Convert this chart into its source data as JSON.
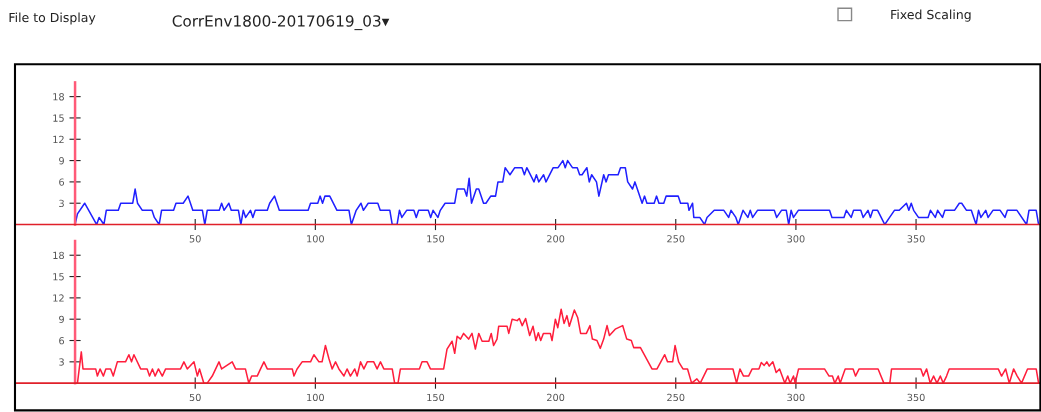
{
  "chart_data": [
    {
      "type": "line",
      "annotations": [
        "File to Display",
        "CorrEnv1800-20170619_03▾",
        "Fixed Scaling"
      ],
      "x": [
        0,
        1,
        4,
        9,
        10,
        12,
        13,
        18,
        19,
        24,
        25,
        26,
        28,
        32,
        33,
        35,
        36,
        41,
        42,
        45,
        47,
        49,
        53,
        54,
        55,
        60,
        61,
        62,
        64,
        65,
        68,
        69,
        70,
        71,
        73,
        74,
        75,
        80,
        81,
        83,
        85,
        97,
        98,
        101,
        102,
        103,
        104,
        106,
        109,
        114,
        115,
        117,
        119,
        120,
        122,
        126,
        127,
        131,
        132,
        134,
        135,
        136,
        138,
        141,
        142,
        143,
        147,
        148,
        149,
        151,
        152,
        154,
        158,
        159,
        162,
        163,
        164,
        165,
        167,
        168,
        170,
        171,
        173,
        175,
        176,
        178,
        179,
        181,
        183,
        186,
        187,
        188,
        191,
        192,
        193,
        195,
        196,
        199,
        201,
        203,
        204,
        205,
        207,
        209,
        210,
        211,
        213,
        214,
        215,
        217,
        218,
        220,
        221,
        222,
        226,
        227,
        229,
        230,
        232,
        233,
        234,
        236,
        237,
        238,
        241,
        242,
        243,
        245,
        246,
        251,
        252,
        255,
        255.5,
        257,
        257.5,
        260,
        262,
        263,
        266,
        270,
        272,
        273,
        275,
        276,
        278,
        280,
        281,
        282,
        284,
        291,
        292,
        294,
        296,
        297,
        298,
        299,
        301,
        314,
        315,
        320,
        321,
        323,
        324,
        327,
        328,
        330,
        331,
        332,
        334,
        337,
        339,
        341,
        343,
        346,
        347,
        348,
        349,
        351,
        355,
        356,
        358,
        359,
        361,
        362,
        366,
        368,
        369,
        371,
        373,
        374,
        375,
        376,
        377,
        379,
        380,
        382,
        385,
        387,
        388,
        392,
        396,
        397,
        400,
        401
      ],
      "series": [
        {
          "color": "#2020ff",
          "values": [
            0,
            1.5,
            3,
            0,
            1,
            0,
            2,
            2,
            3,
            3,
            5,
            3,
            2,
            2,
            1,
            0,
            2,
            2,
            3,
            3,
            4,
            2,
            2,
            0,
            2,
            2,
            3,
            2,
            3,
            2,
            2,
            0,
            2,
            1,
            2,
            1,
            2,
            2,
            3,
            4,
            2,
            2,
            3,
            3,
            4,
            3,
            4,
            4,
            2,
            2,
            0,
            2,
            3,
            2,
            3,
            3,
            2,
            2,
            0,
            0,
            2,
            1,
            2,
            2,
            1,
            2,
            2,
            1,
            2,
            1,
            2,
            3,
            3,
            5,
            5,
            4,
            6.5,
            3,
            5,
            5,
            3,
            3,
            4,
            4,
            6,
            6,
            8,
            7,
            8,
            8,
            7,
            8,
            6,
            7,
            6,
            7,
            6,
            8,
            8,
            9,
            8,
            9,
            8,
            8,
            7,
            7,
            8,
            6,
            7,
            6,
            4,
            7,
            6,
            7,
            7,
            8,
            8,
            6,
            5,
            6,
            5,
            3,
            4,
            3,
            3,
            4,
            3,
            3,
            4,
            4,
            3,
            3,
            2,
            3,
            1,
            1,
            0,
            1,
            2,
            2,
            1,
            2,
            1,
            0,
            2,
            1,
            2,
            1,
            2,
            2,
            1,
            2,
            2,
            0,
            2,
            1,
            2,
            2,
            1,
            1,
            2,
            1,
            2,
            2,
            1,
            2,
            1,
            2,
            2,
            0,
            1,
            2,
            2,
            3,
            2,
            3,
            2,
            1,
            1,
            2,
            1,
            2,
            1,
            2,
            2,
            3,
            3,
            2,
            2,
            1,
            0,
            2,
            1,
            2,
            1,
            2,
            2,
            1,
            2,
            2,
            0,
            2,
            2,
            0
          ]
        }
      ],
      "xlim": [
        -25,
        402
      ],
      "ylim": [
        0,
        20
      ],
      "xticks": [
        50,
        100,
        150,
        200,
        250,
        300,
        350
      ],
      "yticks": [
        3,
        6,
        9,
        12,
        15,
        18
      ]
    },
    {
      "type": "line",
      "x": [
        0,
        1,
        2.6,
        3.3,
        8.6,
        9.3,
        10.4,
        11.8,
        12.8,
        14.8,
        15.9,
        17.6,
        21,
        22.4,
        23.5,
        24.5,
        27.3,
        30,
        31,
        32.2,
        33.3,
        34.7,
        36.3,
        37.7,
        43.9,
        45.3,
        46.7,
        49.5,
        50.9,
        51.8,
        53.6,
        55,
        57.1,
        59.9,
        61,
        65.4,
        66.8,
        70.9,
        72.3,
        73.5,
        75.8,
        77.2,
        78.6,
        80,
        90.4,
        91.1,
        92.4,
        94.5,
        98,
        99.4,
        101.5,
        102.8,
        104.2,
        105.6,
        107,
        108.4,
        109.8,
        111.9,
        113.2,
        114.6,
        116.4,
        117.4,
        118.8,
        120.2,
        121.6,
        124.3,
        125.7,
        127.1,
        128.5,
        132,
        133,
        134.4,
        135.4,
        143.3,
        144.4,
        146.5,
        147.9,
        153.4,
        154.8,
        156.9,
        158,
        159,
        160.4,
        161.7,
        163.8,
        165.2,
        166.6,
        168,
        169.4,
        172.2,
        173.2,
        174.2,
        175.6,
        176.3,
        179.8,
        180.5,
        181.9,
        184,
        184.9,
        186.1,
        187.5,
        189.2,
        190.6,
        191.8,
        192.8,
        193.8,
        194.9,
        197.8,
        198.5,
        199.9,
        200.9,
        202.3,
        203.5,
        204.7,
        205.7,
        207.8,
        209.2,
        210.4,
        212.8,
        214.3,
        215.3,
        217.2,
        218.6,
        220,
        221.4,
        222.4,
        224.8,
        227.9,
        229.6,
        231.5,
        232.5,
        235.3,
        240.1,
        242.2,
        245.4,
        246.6,
        248.7,
        249.7,
        251.2,
        253,
        254.9,
        256.6,
        258.8,
        260.2,
        263.1,
        273.8,
        275.3,
        276.7,
        278.2,
        280.3,
        281.8,
        284.6,
        285.6,
        286.8,
        287.9,
        288.9,
        290.4,
        291.8,
        293.2,
        295.4,
        296.6,
        297.6,
        299,
        299.7,
        301.1,
        311.9,
        313.8,
        315.2,
        316.2,
        317.6,
        318.4,
        320.5,
        323.8,
        324.8,
        326.3,
        334.2,
        336.6,
        339.1,
        339.8,
        352,
        353,
        354.4,
        355.9,
        357.3,
        358.7,
        360.1,
        361.3,
        362.7,
        363.8,
        384.2,
        385.6,
        387.3,
        388.8,
        390.6,
        392.1,
        393.9,
        396.4,
        400,
        401
      ],
      "series": [
        {
          "color": "#ff1e3c",
          "values": [
            0,
            0,
            4.4,
            2,
            2,
            1,
            2,
            1,
            2,
            2,
            1,
            3,
            3,
            4,
            3,
            4,
            2,
            2,
            1,
            2,
            1,
            2,
            1,
            2,
            2,
            3,
            2,
            3,
            1,
            2,
            0,
            0,
            1,
            3,
            2,
            3,
            2,
            2,
            0,
            1,
            1,
            2,
            3,
            2,
            2,
            1,
            2,
            3,
            3,
            4,
            3,
            3,
            5.3,
            3.5,
            2,
            3,
            2,
            1,
            2,
            1,
            2,
            1,
            3,
            2,
            3,
            3,
            2,
            3,
            2,
            2,
            0,
            0,
            2,
            2,
            3,
            3,
            2,
            2,
            4.8,
            5.9,
            4.2,
            6.6,
            6.2,
            7,
            6.2,
            7,
            4.8,
            7,
            5.9,
            5.9,
            7,
            5.3,
            6.2,
            8,
            8,
            7,
            9,
            8.8,
            9.1,
            8.1,
            9.1,
            6.7,
            8,
            6,
            7.1,
            6,
            7,
            7,
            6,
            9,
            7.8,
            10.4,
            8.4,
            9.5,
            8,
            10.3,
            9.2,
            7,
            7,
            8.1,
            6.2,
            6,
            4.9,
            6.2,
            8.1,
            6.7,
            7.6,
            8.1,
            6.2,
            6,
            5,
            5,
            2,
            2,
            4,
            3,
            3,
            5.3,
            3,
            2,
            2,
            0,
            0.6,
            0,
            2,
            2,
            0,
            2,
            1,
            1,
            2,
            2,
            2.9,
            2.5,
            3,
            2.4,
            3,
            1.5,
            2,
            0,
            1,
            0,
            1,
            0,
            2,
            2,
            1,
            1,
            0,
            1,
            0,
            2,
            2,
            1,
            2,
            2,
            0,
            0,
            2,
            2,
            1,
            2,
            0,
            1,
            0,
            1,
            0,
            1,
            2,
            2,
            1,
            2,
            0,
            2,
            1,
            0,
            2,
            2,
            0
          ]
        }
      ],
      "xlim": [
        -25,
        402
      ],
      "ylim": [
        0,
        20
      ],
      "xticks": [
        50,
        100,
        150,
        200,
        250,
        300,
        350
      ],
      "yticks": [
        3,
        6,
        9,
        12,
        15,
        18
      ]
    }
  ]
}
